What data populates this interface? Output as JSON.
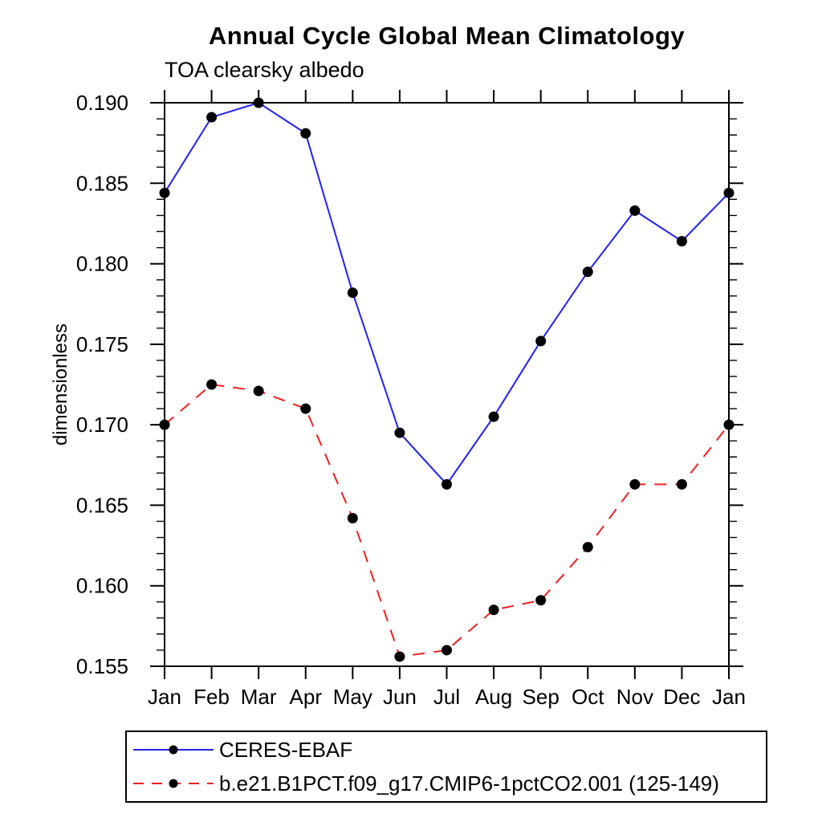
{
  "title": "Annual Cycle Global Mean Climatology",
  "subtitle": "TOA clearsky albedo",
  "ylabel": "dimensionless",
  "colors": {
    "obs_line": "#2222ee",
    "model_line": "#ee2222",
    "marker": "#000000",
    "axis": "#000000"
  },
  "chart_data": {
    "type": "line",
    "title": "Annual Cycle Global Mean Climatology",
    "subtitle": "TOA clearsky albedo",
    "xlabel": "",
    "ylabel": "dimensionless",
    "x_categories": [
      "Jan",
      "Feb",
      "Mar",
      "Apr",
      "May",
      "Jun",
      "Jul",
      "Aug",
      "Sep",
      "Oct",
      "Nov",
      "Dec",
      "Jan"
    ],
    "ylim": [
      0.155,
      0.19
    ],
    "ytick_step": 0.005,
    "ytick_minor_step": 0.001,
    "ytick_labels": [
      "0.155",
      "0.160",
      "0.165",
      "0.170",
      "0.175",
      "0.180",
      "0.185",
      "0.190"
    ],
    "grid": false,
    "legend_position": "bottom-left",
    "series": [
      {
        "name": "CERES-EBAF",
        "color": "#2222ee",
        "line_style": "solid",
        "marker": "filled-circle",
        "marker_color": "#000000",
        "values": [
          0.1844,
          0.1891,
          0.19,
          0.1881,
          0.1782,
          0.1695,
          0.1663,
          0.1705,
          0.1752,
          0.1795,
          0.1833,
          0.1814,
          0.1844
        ]
      },
      {
        "name": "b.e21.B1PCT.f09_g17.CMIP6-1pctCO2.001 (125-149)",
        "color": "#ee2222",
        "line_style": "dashed",
        "marker": "filled-circle",
        "marker_color": "#000000",
        "values": [
          0.17,
          0.1725,
          0.1721,
          0.171,
          0.1642,
          0.1556,
          0.156,
          0.1585,
          0.1591,
          0.1624,
          0.1663,
          0.1663,
          0.17
        ]
      }
    ]
  }
}
